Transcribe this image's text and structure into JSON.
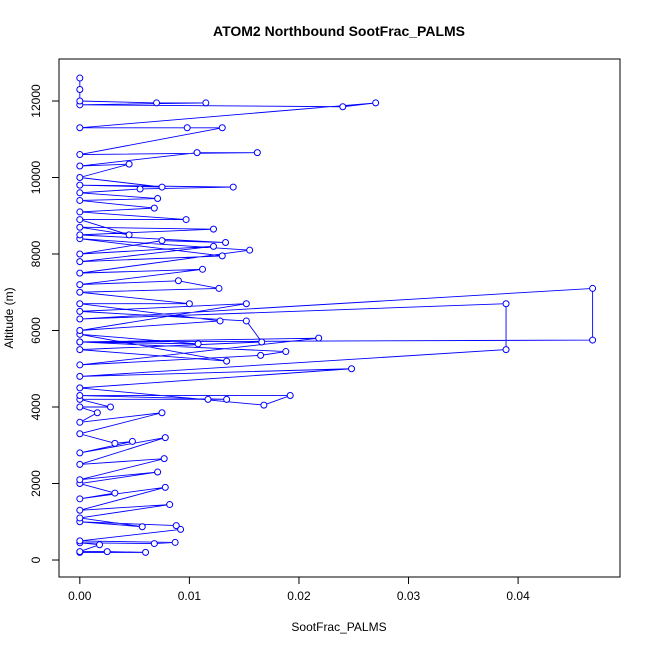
{
  "chart_data": {
    "type": "line",
    "title": "ATOM2 Northbound SootFrac_PALMS",
    "x_label": "SootFrac_PALMS",
    "y_label": "Altitude (m)",
    "color": "#0000ff",
    "xlim": [
      -0.0019,
      0.0493
    ],
    "ylim": [
      -444,
      13098
    ],
    "xticks": [
      {
        "value": 0,
        "label": "0.00"
      },
      {
        "value": 0.01,
        "label": "0.01"
      },
      {
        "value": 0.02,
        "label": "0.02"
      },
      {
        "value": 0.03,
        "label": "0.03"
      },
      {
        "value": 0.04,
        "label": "0.04"
      }
    ],
    "yticks": [
      0,
      2000,
      4000,
      6000,
      8000,
      10000,
      12000
    ],
    "x": [
      0,
      0.006,
      0.0025,
      0,
      0.0018,
      0,
      0.0068,
      0.0087,
      0,
      0.0092,
      0.0088,
      0,
      0.0057,
      0,
      0.0082,
      0,
      0.0078,
      0,
      0.0032,
      0,
      0.0071,
      0,
      0.0077,
      0,
      0.0078,
      0,
      0.0048,
      0.0032,
      0,
      0.0075,
      0,
      0.0016,
      0,
      0.0028,
      0,
      0.0117,
      0.0134,
      0,
      0.0192,
      0.0168,
      0,
      0.0248,
      0,
      0.0389,
      0.0389,
      0,
      0.0468,
      0.0468,
      0,
      0.0188,
      0.0165,
      0,
      0.0218,
      0,
      0.0108,
      0,
      0.0134,
      0,
      0.0166,
      0.0152,
      0,
      0.0152,
      0,
      0.0128,
      0,
      0.01,
      0,
      0.0127,
      0.009,
      0,
      0.0112,
      0,
      0.0155,
      0,
      0.013,
      0,
      0.0122,
      0,
      0.0075,
      0.0133,
      0,
      0.0122,
      0,
      0.0045,
      0,
      0.0097,
      0,
      0.0068,
      0,
      0.0071,
      0,
      0.0055,
      0.014,
      0,
      0.0075,
      0,
      0.0045,
      0,
      0.0107,
      0.0162,
      0,
      0.013,
      0.0098,
      0,
      0.027,
      0.024,
      0,
      0.0115,
      0.007,
      0,
      0,
      0
    ],
    "values": [
      200,
      200,
      220,
      220,
      400,
      450,
      430,
      460,
      500,
      800,
      900,
      1000,
      870,
      1100,
      1450,
      1300,
      1900,
      1600,
      1750,
      2000,
      2300,
      2100,
      2650,
      2500,
      3200,
      2800,
      3100,
      3050,
      3300,
      3850,
      3600,
      3850,
      4000,
      4000,
      4200,
      4200,
      4200,
      4300,
      4300,
      4050,
      4500,
      5000,
      4800,
      5500,
      6700,
      6300,
      7100,
      5750,
      5700,
      5450,
      5350,
      5100,
      5800,
      5700,
      5650,
      5900,
      5200,
      5500,
      5700,
      6250,
      6500,
      6700,
      6000,
      6250,
      6700,
      6700,
      7000,
      7100,
      7300,
      7200,
      7600,
      7500,
      8100,
      8400,
      7950,
      7800,
      8200,
      8000,
      8350,
      8300,
      8500,
      8650,
      8700,
      8500,
      8900,
      8900,
      9100,
      9200,
      9400,
      9450,
      9600,
      9700,
      9750,
      9800,
      9750,
      10000,
      10350,
      10300,
      10650,
      10650,
      10600,
      11300,
      11300,
      11300,
      11950,
      11850,
      11900,
      11950,
      11950,
      12000,
      12300,
      12600
    ]
  }
}
